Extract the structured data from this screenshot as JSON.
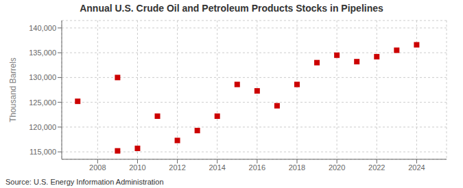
{
  "chart_data": {
    "type": "scatter",
    "title": "Annual U.S. Crude Oil and Petroleum Products Stocks in Pipelines",
    "y_label": "Thousand Barrels",
    "annotation": "Source: U.S. Energy Information Administration",
    "x": [
      2007,
      2009,
      2009,
      2010,
      2011,
      2012,
      2013,
      2014,
      2015,
      2016,
      2017,
      2018,
      2019,
      2020,
      2021,
      2022,
      2023,
      2024
    ],
    "values": [
      125200,
      130000,
      115200,
      115700,
      122200,
      117300,
      119300,
      122200,
      128600,
      127300,
      124300,
      128600,
      133000,
      134500,
      133200,
      134200,
      135500,
      136600
    ],
    "color": "#cc0000",
    "marker": "square",
    "xlim": [
      2006.2,
      2025.5
    ],
    "ylim": [
      113500,
      141500
    ],
    "xticks": [
      2008,
      2010,
      2012,
      2014,
      2016,
      2018,
      2020,
      2022,
      2024
    ],
    "yticks": [
      {
        "value": 115000,
        "label": "115,000"
      },
      {
        "value": 120000,
        "label": "120,000"
      },
      {
        "value": 125000,
        "label": "125,000"
      },
      {
        "value": 130000,
        "label": "130,000"
      },
      {
        "value": 135000,
        "label": "135,000"
      },
      {
        "value": 140000,
        "label": "140,000"
      }
    ],
    "grid": true
  }
}
